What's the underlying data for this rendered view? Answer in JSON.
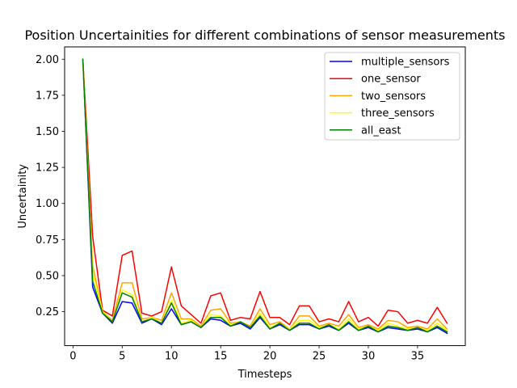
{
  "chart_data": {
    "type": "line",
    "title": "Position Uncertainities for different combinations of sensor measurements",
    "xlabel": "Timesteps",
    "ylabel": "Uncertainity",
    "xlim": [
      -0.85,
      39.85
    ],
    "ylim": [
      0.0145,
      2.0855
    ],
    "xticks": [
      0,
      5,
      10,
      15,
      20,
      25,
      30,
      35
    ],
    "xtick_labels": [
      "0",
      "5",
      "10",
      "15",
      "20",
      "25",
      "30",
      "35"
    ],
    "yticks": [
      0.25,
      0.5,
      0.75,
      1.0,
      1.25,
      1.5,
      1.75,
      2.0
    ],
    "ytick_labels": [
      "0.25",
      "0.50",
      "0.75",
      "1.00",
      "1.25",
      "1.50",
      "1.75",
      "2.00"
    ],
    "grid": false,
    "legend_position": "top-right",
    "x": [
      1,
      2,
      3,
      4,
      5,
      6,
      7,
      8,
      9,
      10,
      11,
      12,
      13,
      14,
      15,
      16,
      17,
      18,
      19,
      20,
      21,
      22,
      23,
      24,
      25,
      26,
      27,
      28,
      29,
      30,
      31,
      32,
      33,
      34,
      35,
      36,
      37,
      38
    ],
    "series": [
      {
        "name": "multiple_sensors",
        "color": "#0000ff",
        "values": [
          2.0,
          0.42,
          0.24,
          0.17,
          0.32,
          0.31,
          0.17,
          0.2,
          0.16,
          0.27,
          0.16,
          0.18,
          0.14,
          0.2,
          0.19,
          0.15,
          0.17,
          0.13,
          0.21,
          0.13,
          0.16,
          0.12,
          0.16,
          0.16,
          0.13,
          0.15,
          0.12,
          0.17,
          0.12,
          0.14,
          0.11,
          0.14,
          0.13,
          0.12,
          0.13,
          0.11,
          0.14,
          0.1
        ]
      },
      {
        "name": "one_sensor",
        "color": "#ff0000",
        "values": [
          2.0,
          0.77,
          0.26,
          0.22,
          0.64,
          0.67,
          0.24,
          0.22,
          0.25,
          0.56,
          0.29,
          0.23,
          0.17,
          0.36,
          0.38,
          0.19,
          0.21,
          0.2,
          0.39,
          0.21,
          0.21,
          0.16,
          0.29,
          0.29,
          0.18,
          0.2,
          0.18,
          0.32,
          0.18,
          0.21,
          0.15,
          0.26,
          0.25,
          0.17,
          0.19,
          0.17,
          0.28,
          0.17
        ]
      },
      {
        "name": "two_sensors",
        "color": "#ffa500",
        "values": [
          2.0,
          0.57,
          0.25,
          0.19,
          0.45,
          0.45,
          0.2,
          0.21,
          0.19,
          0.38,
          0.2,
          0.2,
          0.15,
          0.26,
          0.27,
          0.17,
          0.18,
          0.15,
          0.27,
          0.16,
          0.18,
          0.13,
          0.22,
          0.22,
          0.15,
          0.17,
          0.15,
          0.23,
          0.14,
          0.16,
          0.13,
          0.19,
          0.18,
          0.14,
          0.15,
          0.13,
          0.2,
          0.13
        ]
      },
      {
        "name": "three_sensors",
        "color": "#ffff00",
        "values": [
          2.0,
          0.52,
          0.25,
          0.18,
          0.4,
          0.37,
          0.18,
          0.21,
          0.17,
          0.33,
          0.17,
          0.19,
          0.14,
          0.23,
          0.22,
          0.16,
          0.18,
          0.14,
          0.24,
          0.14,
          0.17,
          0.13,
          0.19,
          0.19,
          0.14,
          0.16,
          0.13,
          0.2,
          0.13,
          0.15,
          0.12,
          0.17,
          0.15,
          0.13,
          0.14,
          0.12,
          0.17,
          0.12
        ]
      },
      {
        "name": "all_east",
        "color": "#008000",
        "values": [
          2.0,
          0.46,
          0.24,
          0.18,
          0.38,
          0.35,
          0.18,
          0.2,
          0.17,
          0.31,
          0.16,
          0.18,
          0.14,
          0.21,
          0.21,
          0.15,
          0.18,
          0.14,
          0.22,
          0.13,
          0.17,
          0.12,
          0.17,
          0.17,
          0.13,
          0.16,
          0.12,
          0.18,
          0.12,
          0.15,
          0.11,
          0.15,
          0.14,
          0.12,
          0.14,
          0.11,
          0.15,
          0.11
        ]
      }
    ]
  }
}
